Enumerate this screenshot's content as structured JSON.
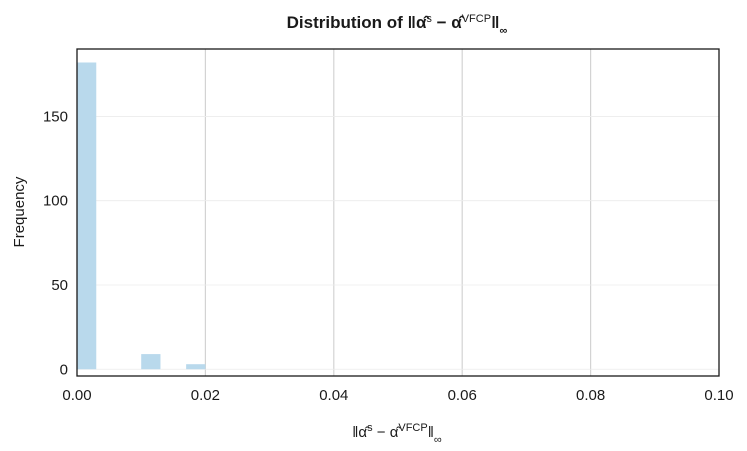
{
  "chart_data": {
    "type": "bar",
    "title": "Distribution of ‖α̂ˢ − α̂ⱽᶠᶜᴾ‖∞",
    "xlabel": "‖α̂ˢ − α̂ⱽᶠᶜᴾ‖∞",
    "ylabel": "Frequency",
    "xlim": [
      0.0,
      0.1
    ],
    "ylim": [
      -4,
      190
    ],
    "x_ticks": [
      "0.00",
      "0.02",
      "0.04",
      "0.06",
      "0.08",
      "0.10"
    ],
    "y_ticks": [
      "0",
      "50",
      "100",
      "150"
    ],
    "grid": true,
    "bins": [
      {
        "x0": 0.0,
        "x1": 0.003,
        "count": 182
      },
      {
        "x0": 0.01,
        "x1": 0.013,
        "count": 9
      },
      {
        "x0": 0.017,
        "x1": 0.02,
        "count": 3
      }
    ],
    "bar_color": "#b9d9ec",
    "grid_color": "#d3d3d3"
  }
}
